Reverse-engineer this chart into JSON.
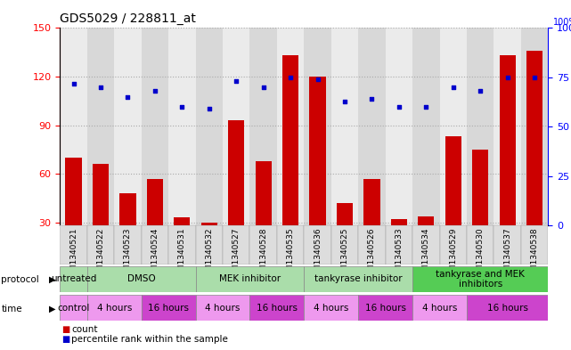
{
  "title": "GDS5029 / 228811_at",
  "samples": [
    "GSM1340521",
    "GSM1340522",
    "GSM1340523",
    "GSM1340524",
    "GSM1340531",
    "GSM1340532",
    "GSM1340527",
    "GSM1340528",
    "GSM1340535",
    "GSM1340536",
    "GSM1340525",
    "GSM1340526",
    "GSM1340533",
    "GSM1340534",
    "GSM1340529",
    "GSM1340530",
    "GSM1340537",
    "GSM1340538"
  ],
  "counts": [
    70,
    66,
    48,
    57,
    33,
    30,
    93,
    68,
    133,
    120,
    42,
    57,
    32,
    34,
    83,
    75,
    133,
    136
  ],
  "percentile_ranks": [
    72,
    70,
    65,
    68,
    60,
    59,
    73,
    70,
    75,
    74,
    63,
    64,
    60,
    60,
    70,
    68,
    75,
    75
  ],
  "left_ylim": [
    28,
    150
  ],
  "right_ylim": [
    0,
    100
  ],
  "left_yticks": [
    30,
    60,
    90,
    120,
    150
  ],
  "right_yticks": [
    0,
    25,
    50,
    75,
    100
  ],
  "bar_color": "#cc0000",
  "dot_color": "#0000cc",
  "protocol_groups": [
    {
      "label": "untreated",
      "start": 0,
      "end": 1,
      "color": "#aaddaa"
    },
    {
      "label": "DMSO",
      "start": 1,
      "end": 5,
      "color": "#aaddaa"
    },
    {
      "label": "MEK inhibitor",
      "start": 5,
      "end": 9,
      "color": "#aaddaa"
    },
    {
      "label": "tankyrase inhibitor",
      "start": 9,
      "end": 13,
      "color": "#aaddaa"
    },
    {
      "label": "tankyrase and MEK\ninhibitors",
      "start": 13,
      "end": 18,
      "color": "#55cc55"
    }
  ],
  "time_groups": [
    {
      "label": "control",
      "start": 0,
      "end": 1,
      "color": "#ee99ee"
    },
    {
      "label": "4 hours",
      "start": 1,
      "end": 3,
      "color": "#ee99ee"
    },
    {
      "label": "16 hours",
      "start": 3,
      "end": 5,
      "color": "#cc44cc"
    },
    {
      "label": "4 hours",
      "start": 5,
      "end": 7,
      "color": "#ee99ee"
    },
    {
      "label": "16 hours",
      "start": 7,
      "end": 9,
      "color": "#cc44cc"
    },
    {
      "label": "4 hours",
      "start": 9,
      "end": 11,
      "color": "#ee99ee"
    },
    {
      "label": "16 hours",
      "start": 11,
      "end": 13,
      "color": "#cc44cc"
    },
    {
      "label": "4 hours",
      "start": 13,
      "end": 15,
      "color": "#ee99ee"
    },
    {
      "label": "16 hours",
      "start": 15,
      "end": 18,
      "color": "#cc44cc"
    }
  ]
}
